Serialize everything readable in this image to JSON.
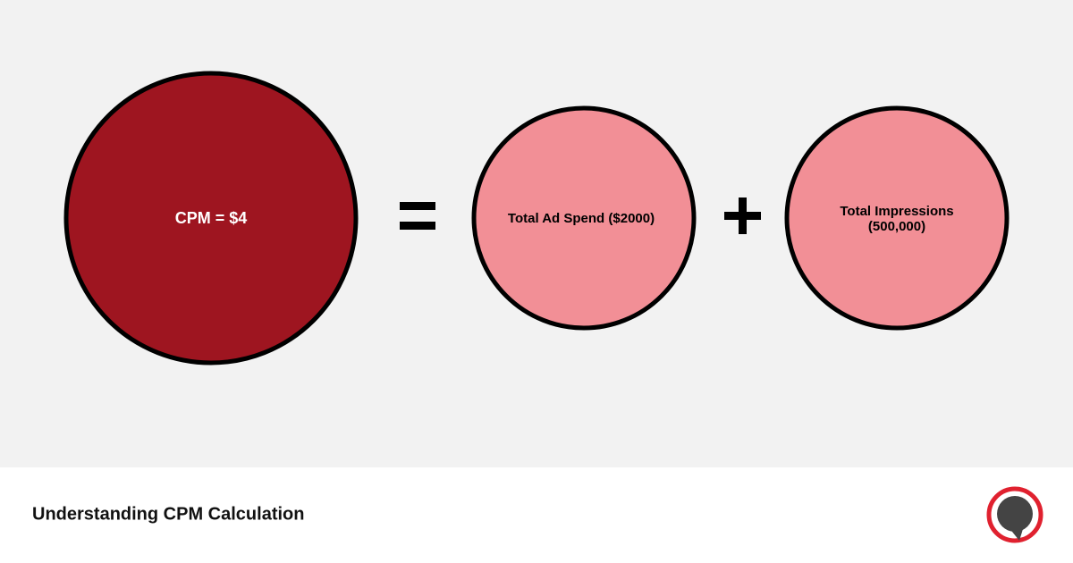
{
  "nodes": [
    {
      "label": "CPM = $4"
    },
    {
      "label": "Total Ad Spend ($2000)"
    },
    {
      "label_lines": [
        "Total Impressions",
        "(500,000)"
      ]
    }
  ],
  "footer": {
    "title": "Understanding CPM Calculation"
  }
}
